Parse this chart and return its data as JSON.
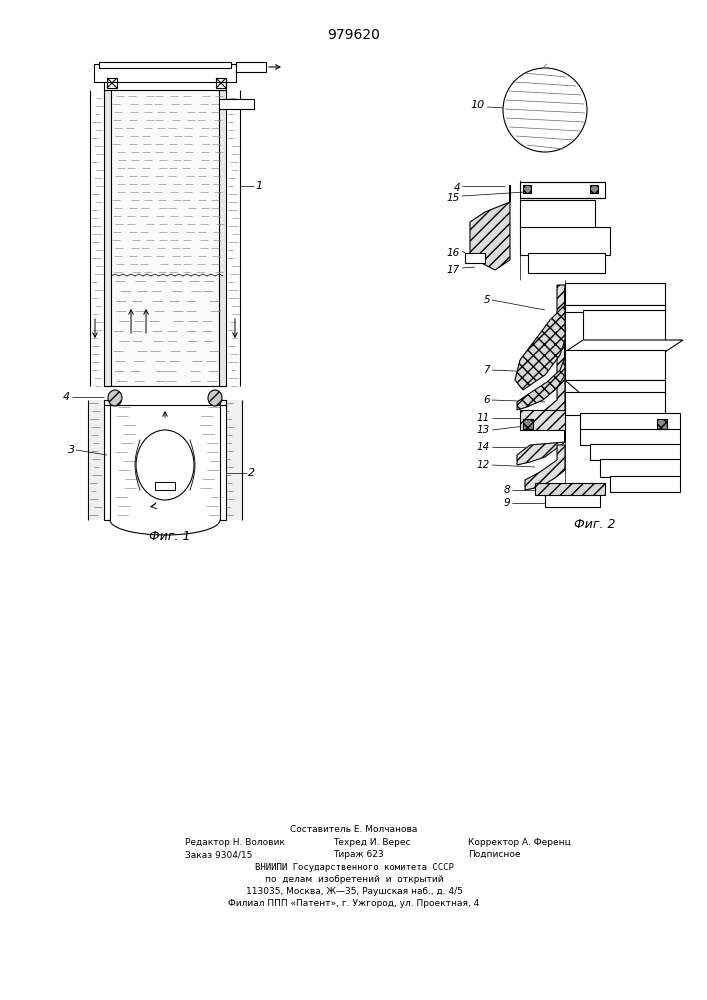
{
  "title": "979620",
  "bg_color": "#ffffff",
  "fig1_caption": "Фиг. 1",
  "fig2_caption": "Фиг. 2"
}
